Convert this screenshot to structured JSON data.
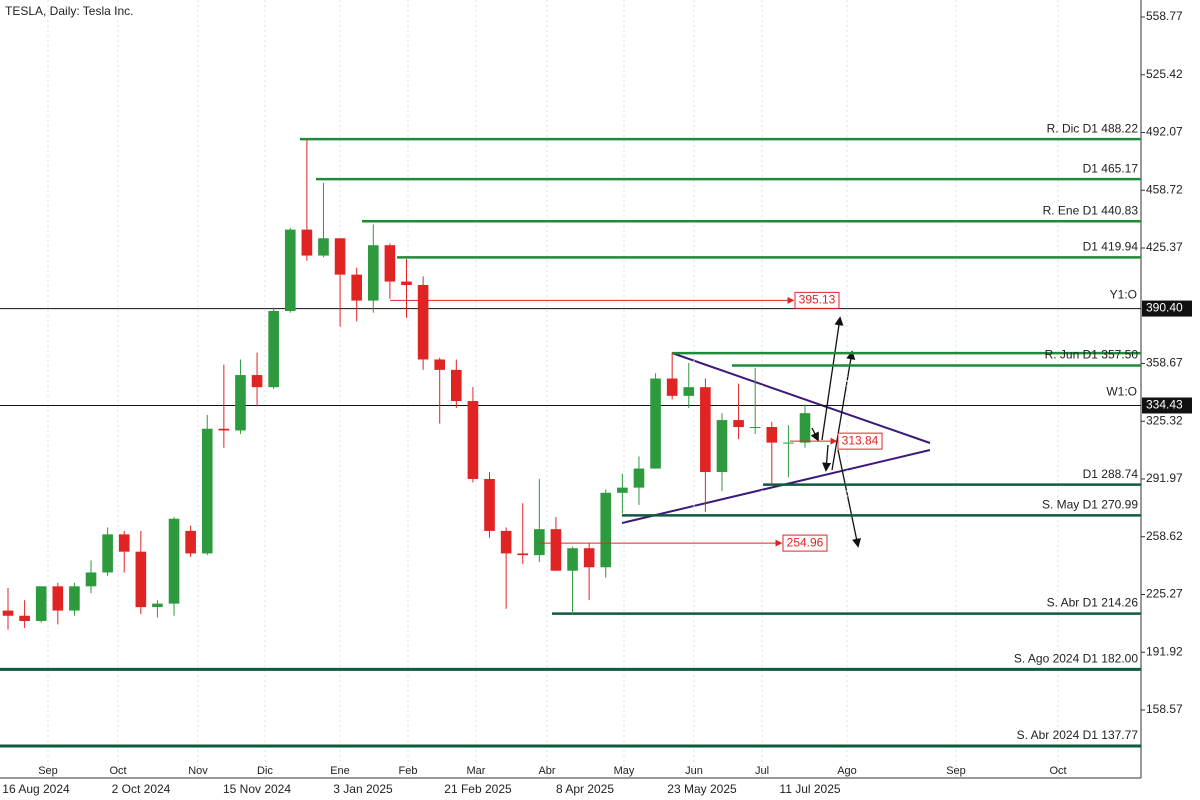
{
  "chart_data": {
    "type": "candlestick",
    "title": "TESLA, Daily:  Tesla Inc.",
    "ylim": [
      119.3,
      568.6
    ],
    "yticks": [
      558.77,
      525.42,
      492.07,
      458.72,
      425.37,
      358.67,
      325.32,
      291.97,
      258.62,
      225.27,
      191.92,
      158.57
    ],
    "open": [
      216,
      213,
      210,
      230,
      216,
      230,
      238,
      260,
      250,
      218,
      220,
      262,
      249,
      321,
      320,
      352,
      345,
      389,
      436,
      421,
      431,
      410,
      395,
      427,
      406,
      404,
      361,
      355,
      337,
      292,
      262,
      249,
      248,
      263,
      239,
      252,
      241,
      284,
      287,
      298,
      350,
      340,
      345,
      296,
      326,
      322,
      322,
      313,
      313
    ],
    "high": [
      229,
      222,
      230,
      232,
      232,
      245,
      264,
      262,
      262,
      222,
      270,
      265,
      329,
      358,
      361,
      365,
      391,
      437,
      488,
      463,
      431,
      414,
      439,
      428,
      419,
      409,
      362,
      361,
      345,
      296,
      264,
      278,
      292,
      270,
      253,
      255,
      286,
      295,
      305,
      353,
      365,
      359,
      350,
      330,
      347,
      356,
      325,
      323,
      335
    ],
    "low": [
      205,
      206,
      209,
      208,
      213,
      226,
      236,
      238,
      214,
      212,
      213,
      247,
      248,
      310,
      318,
      334,
      344,
      388,
      418,
      420,
      380,
      383,
      388,
      396,
      385,
      355,
      324,
      333,
      290,
      258,
      217,
      243,
      244,
      239,
      214,
      222,
      235,
      272,
      277,
      298,
      338,
      333,
      273,
      285,
      315,
      318,
      288,
      293,
      310
    ],
    "close": [
      213,
      210,
      230,
      216,
      230,
      238,
      260,
      250,
      218,
      220,
      269,
      249,
      321,
      320,
      352,
      345,
      389,
      436,
      421,
      431,
      410,
      395,
      427,
      406,
      404,
      361,
      355,
      337,
      292,
      262,
      249,
      248,
      263,
      239,
      252,
      241,
      284,
      287,
      298,
      350,
      340,
      345,
      296,
      326,
      322,
      322,
      313,
      313,
      330
    ],
    "colors": {
      "up": "#2e9a3e",
      "down": "#e02424",
      "level": "#1f8a3a",
      "support": "#0f5a3c",
      "target": "#e02424",
      "marker": "#111111"
    },
    "levels": [
      {
        "label": "R. Dic D1 488.22",
        "value": 488.22,
        "kind": "level"
      },
      {
        "label": "D1 465.17",
        "value": 465.17,
        "kind": "level"
      },
      {
        "label": "R. Ene D1 440.83",
        "value": 440.83,
        "kind": "level"
      },
      {
        "label": "D1 419.94",
        "value": 419.94,
        "kind": "level"
      },
      {
        "label": null,
        "value": 364.7,
        "kind": "level"
      },
      {
        "label": "R. Jun D1 357.50",
        "value": 357.5,
        "kind": "level"
      },
      {
        "label": "D1 288.74",
        "value": 288.74,
        "kind": "support"
      },
      {
        "label": "S. May D1 270.99",
        "value": 270.99,
        "kind": "support"
      },
      {
        "label": "S. Abr D1 214.26",
        "value": 214.26,
        "kind": "support"
      },
      {
        "label": "S. Ago 2024 D1 182.00",
        "value": 182.0,
        "kind": "support"
      },
      {
        "label": "S. Abr 2024 D1 137.77",
        "value": 137.77,
        "kind": "support"
      }
    ],
    "markers": [
      {
        "label": "Y1:O",
        "value": 390.4,
        "value_label": "390.40"
      },
      {
        "label": "W1:O",
        "value": 334.43,
        "value_label": "334.43"
      }
    ],
    "targets": [
      395.13,
      313.84,
      254.96
    ],
    "months": [
      "Sep",
      "Oct",
      "Nov",
      "Dic",
      "Ene",
      "Feb",
      "Mar",
      "Abr",
      "May",
      "Jun",
      "Jul",
      "Ago",
      "Sep",
      "Oct"
    ],
    "dates": [
      "16 Aug 2024",
      "2 Oct 2024",
      "15 Nov 2024",
      "3 Jan 2025",
      "21 Feb 2025",
      "8 Apr 2025",
      "23 May 2025",
      "11 Jul 2025"
    ]
  }
}
